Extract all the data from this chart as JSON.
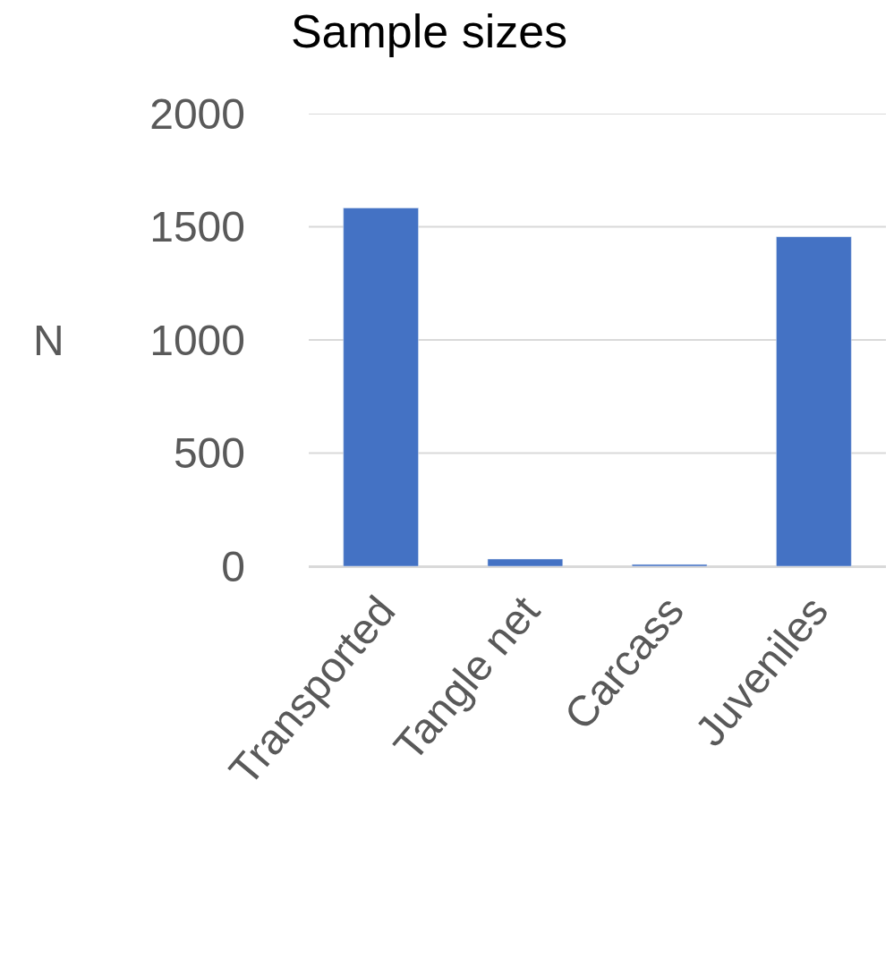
{
  "chart_data": {
    "type": "bar",
    "title": "Sample sizes",
    "ylabel": "N",
    "categories": [
      "Transported",
      "Tangle net",
      "Carcass",
      "Juveniles"
    ],
    "values": [
      1583,
      32,
      8,
      1456
    ],
    "color": "#4472c4",
    "ylim": [
      0,
      2000
    ],
    "yticks": [
      0,
      500,
      1000,
      1500,
      2000
    ],
    "grid": "y"
  }
}
